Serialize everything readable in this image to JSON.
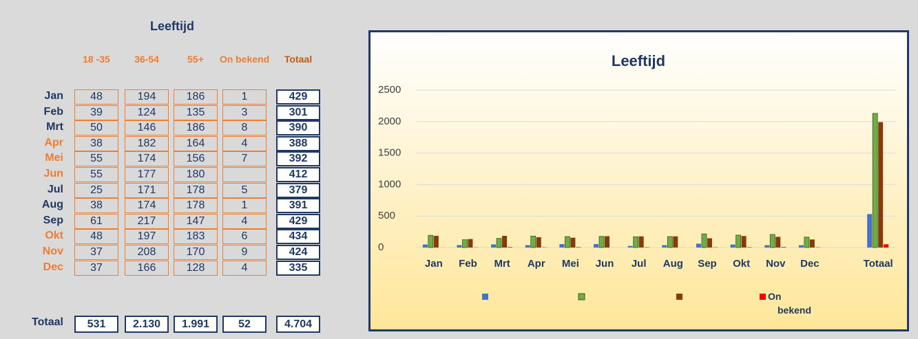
{
  "table": {
    "title": "Leeftijd",
    "columns": [
      "18 -35",
      "36-54",
      "55+",
      "On bekend",
      "Totaal"
    ],
    "rows": [
      {
        "label": "Jan",
        "color": "#1f3864",
        "cells": [
          48,
          194,
          186,
          1,
          429
        ]
      },
      {
        "label": "Feb",
        "color": "#1f3864",
        "cells": [
          39,
          124,
          135,
          3,
          301
        ]
      },
      {
        "label": "Mrt",
        "color": "#1f3864",
        "cells": [
          50,
          146,
          186,
          8,
          390
        ]
      },
      {
        "label": "Apr",
        "color": "#ed7d31",
        "cells": [
          38,
          182,
          164,
          4,
          388
        ]
      },
      {
        "label": "Mei",
        "color": "#ed7d31",
        "cells": [
          55,
          174,
          156,
          7,
          392
        ]
      },
      {
        "label": "Jun",
        "color": "#ed7d31",
        "cells": [
          55,
          177,
          180,
          null,
          412
        ]
      },
      {
        "label": "Jul",
        "color": "#1f3864",
        "cells": [
          25,
          171,
          178,
          5,
          379
        ]
      },
      {
        "label": "Aug",
        "color": "#1f3864",
        "cells": [
          38,
          174,
          178,
          1,
          391
        ]
      },
      {
        "label": "Sep",
        "color": "#1f3864",
        "cells": [
          61,
          217,
          147,
          4,
          429
        ]
      },
      {
        "label": "Okt",
        "color": "#ed7d31",
        "cells": [
          48,
          197,
          183,
          6,
          434
        ]
      },
      {
        "label": "Nov",
        "color": "#ed7d31",
        "cells": [
          37,
          208,
          170,
          9,
          424
        ]
      },
      {
        "label": "Dec",
        "color": "#ed7d31",
        "cells": [
          37,
          166,
          128,
          4,
          335
        ]
      }
    ],
    "total": {
      "label": "Totaal",
      "color": "#1f3864",
      "cells": [
        531,
        "2.130",
        "1.991",
        52,
        "4.704"
      ]
    }
  },
  "chart_data": {
    "type": "bar",
    "title": "Leeftijd",
    "categories": [
      "Jan",
      "Feb",
      "Mrt",
      "Apr",
      "Mei",
      "Jun",
      "Jul",
      "Aug",
      "Sep",
      "Okt",
      "Nov",
      "Dec",
      null,
      "Totaal"
    ],
    "series": [
      {
        "name": "18 -35",
        "color": "#4472c4",
        "values": [
          48,
          39,
          50,
          38,
          55,
          55,
          25,
          38,
          61,
          48,
          37,
          37,
          null,
          531
        ]
      },
      {
        "name": "36-54",
        "color": "#70ad47",
        "values": [
          194,
          124,
          146,
          182,
          174,
          177,
          171,
          174,
          217,
          197,
          208,
          166,
          null,
          2130
        ]
      },
      {
        "name": "55+",
        "color": "#843c0c",
        "values": [
          186,
          135,
          186,
          164,
          156,
          180,
          178,
          178,
          147,
          183,
          170,
          128,
          null,
          1991
        ]
      },
      {
        "name": "On bekend",
        "color": "#ff0000",
        "values": [
          1,
          3,
          8,
          4,
          7,
          null,
          5,
          1,
          4,
          6,
          9,
          4,
          null,
          52
        ]
      }
    ],
    "ylim": [
      0,
      2500
    ],
    "yticks": [
      0,
      500,
      1000,
      1500,
      2000,
      2500
    ],
    "grid": true,
    "legend": "bottom"
  }
}
